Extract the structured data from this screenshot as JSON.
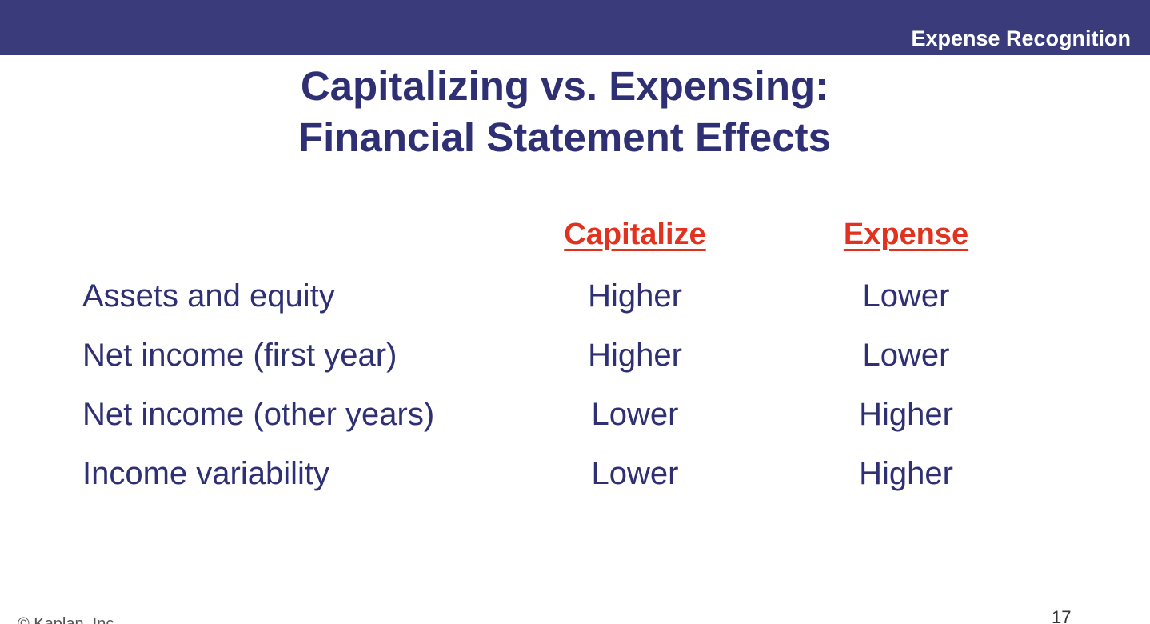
{
  "header": {
    "section_label": "Expense Recognition"
  },
  "title": {
    "line1": "Capitalizing vs. Expensing:",
    "line2": "Financial Statement Effects"
  },
  "table": {
    "columns": [
      "Capitalize",
      "Expense"
    ],
    "rows": [
      {
        "label": "Assets and equity",
        "capitalize": "Higher",
        "expense": "Lower"
      },
      {
        "label": "Net income (first year)",
        "capitalize": "Higher",
        "expense": "Lower"
      },
      {
        "label": "Net income (other years)",
        "capitalize": "Lower",
        "expense": "Higher"
      },
      {
        "label": "Income variability",
        "capitalize": "Lower",
        "expense": "Higher"
      }
    ]
  },
  "footer": {
    "copyright": "© Kaplan, Inc.",
    "page_number": "17"
  },
  "colors": {
    "header_bar": "#393b7a",
    "title_text": "#2e3073",
    "column_header": "#e0321e"
  }
}
